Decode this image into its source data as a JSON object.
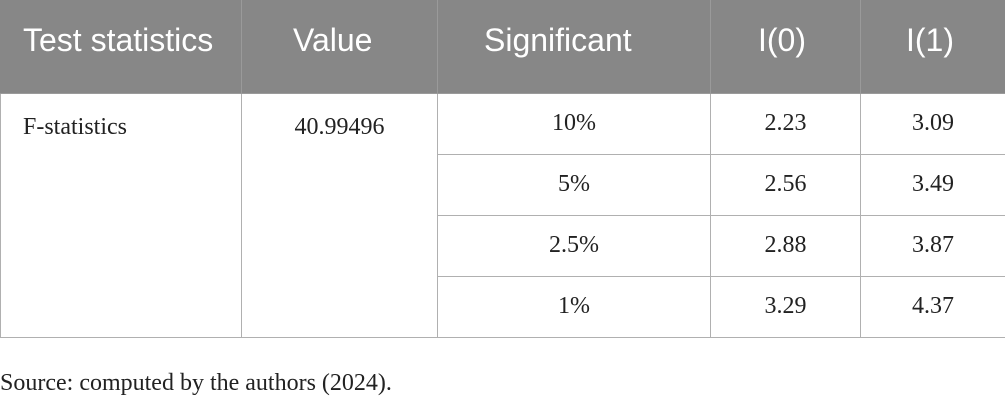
{
  "table": {
    "header": [
      "Test statistics",
      "Value",
      "Significant",
      "I(0)",
      "I(1)"
    ],
    "test": "F-statistics",
    "value": "40.99496",
    "rows": [
      [
        "10%",
        "2.23",
        "3.09"
      ],
      [
        "5%",
        "2.56",
        "3.49"
      ],
      [
        "2.5%",
        "2.88",
        "3.87"
      ],
      [
        "1%",
        "3.29",
        "4.37"
      ]
    ]
  },
  "note": "Source: computed by the authors (2024)."
}
